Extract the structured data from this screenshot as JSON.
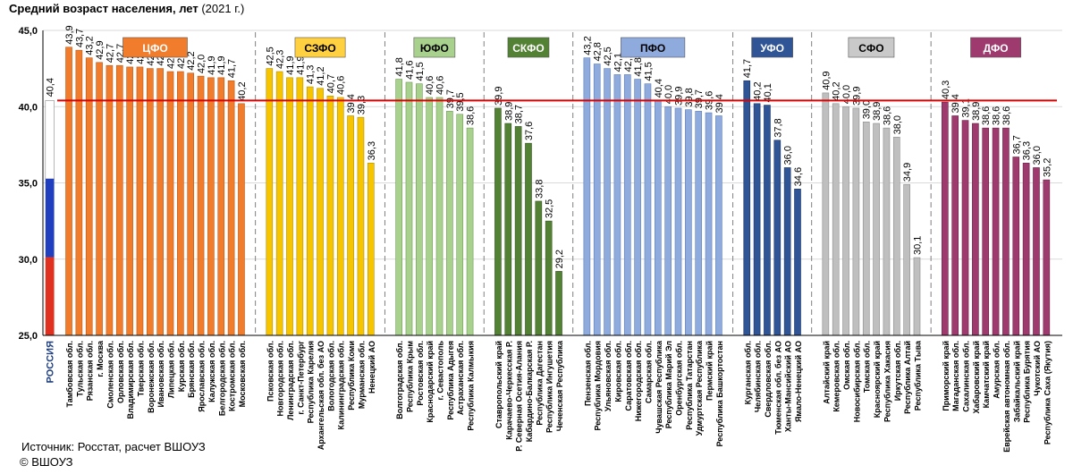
{
  "title": "Средний возраст населения, лет",
  "year_note": "(2021 г.)",
  "source": "Источник: Росстат, расчет ВШОУЗ",
  "copyright": "© ВШОУЗ",
  "colors": {
    "russia_flag": [
      "#ffffff",
      "#1f3fbf",
      "#e03020"
    ],
    "average_line": "#e00000",
    "grid": "#d9d9d9",
    "separator": "#808080"
  },
  "chart_data": {
    "type": "bar",
    "title": "Средний возраст населения, лет (2021 г.)",
    "ylabel": "",
    "ylim": [
      25,
      45
    ],
    "yticks": [
      "25,0",
      "30,0",
      "35,0",
      "40,0",
      "45,0"
    ],
    "yticks_values": [
      25,
      30,
      35,
      40,
      45
    ],
    "reference_line": {
      "value": 40.4
    },
    "russia": {
      "label": "РОССИЯ",
      "value": 40.4,
      "value_label": "40,4"
    },
    "groups": [
      {
        "label": "ЦФО",
        "color": "#f07c2c",
        "edge": "#b85a18",
        "label_color": "#ffffff",
        "badge_fill": "#f07c2c",
        "bars": [
          [
            "Тамбовская обл.",
            43.9
          ],
          [
            "Тульская обл.",
            43.7
          ],
          [
            "Рязанская обл.",
            43.2
          ],
          [
            "г. Москва",
            42.9
          ],
          [
            "Смоленская обл.",
            42.7
          ],
          [
            "Орловская обл.",
            42.7
          ],
          [
            "Владимирская обл.",
            42.6
          ],
          [
            "Тверская обл.",
            42.6
          ],
          [
            "Воронежская обл.",
            42.5
          ],
          [
            "Ивановская обл.",
            42.5
          ],
          [
            "Липецкая обл.",
            42.3
          ],
          [
            "Курская обл.",
            42.3
          ],
          [
            "Брянская обл.",
            42.2
          ],
          [
            "Ярославская обл.",
            42.0
          ],
          [
            "Калужская обл.",
            41.9
          ],
          [
            "Белгородская обл.",
            41.9
          ],
          [
            "Костромская обл.",
            41.7
          ],
          [
            "Московская обл.",
            40.2
          ]
        ]
      },
      {
        "label": "СЗФО",
        "color": "#f6c500",
        "edge": "#b08c00",
        "label_color": "#000000",
        "badge_fill": "#ffd040",
        "bars": [
          [
            "Псковская обл.",
            42.5
          ],
          [
            "Новгородская обл.",
            42.3
          ],
          [
            "Ленинградская обл.",
            41.9
          ],
          [
            "г. Санкт-Петербург",
            41.9
          ],
          [
            "Республика Карелия",
            41.3
          ],
          [
            "Архангельская обл. без АО",
            41.2
          ],
          [
            "Вологодская обл.",
            40.7
          ],
          [
            "Калининградская обл.",
            40.6
          ],
          [
            "Республика Коми",
            39.4
          ],
          [
            "Мурманская обл.",
            39.3
          ],
          [
            "Ненецкий АО",
            36.3
          ]
        ]
      },
      {
        "label": "ЮФО",
        "color": "#a9d18e",
        "edge": "#6e9a55",
        "label_color": "#000000",
        "badge_fill": "#a9d18e",
        "bars": [
          [
            "Волгоградская обл.",
            41.8
          ],
          [
            "Республика Крым",
            41.6
          ],
          [
            "Ростовская обл.",
            41.5
          ],
          [
            "Краснодарский край",
            40.6
          ],
          [
            "г. Севастополь",
            40.6
          ],
          [
            "Республика Адыгея",
            39.7
          ],
          [
            "Астраханская обл.",
            39.5
          ],
          [
            "Республика Калмыкия",
            38.6
          ]
        ]
      },
      {
        "label": "СКФО",
        "color": "#548235",
        "edge": "#365621",
        "label_color": "#ffffff",
        "badge_fill": "#548235",
        "bars": [
          [
            "Ставропольский край",
            39.9
          ],
          [
            "Карачаево-Черкесская Р.",
            38.9
          ],
          [
            "Р. Северная Осетия-Алания",
            38.7
          ],
          [
            "Кабардино-Балкарская Р.",
            37.6
          ],
          [
            "Республика Дагестан",
            33.8
          ],
          [
            "Республика Ингушетия",
            32.5
          ],
          [
            "Чеченская Республика",
            29.2
          ]
        ]
      },
      {
        "label": "ПФО",
        "color": "#8faadc",
        "edge": "#5f7fb8",
        "label_color": "#000000",
        "badge_fill": "#8faadc",
        "bars": [
          [
            "Пензенская обл.",
            43.2
          ],
          [
            "Республика Мордовия",
            42.8
          ],
          [
            "Ульяновская обл.",
            42.5
          ],
          [
            "Кировская обл.",
            42.1
          ],
          [
            "Саратовская обл.",
            42.1
          ],
          [
            "Нижегородская обл.",
            41.8
          ],
          [
            "Самарская обл.",
            41.5
          ],
          [
            "Чувашская Республика",
            40.4
          ],
          [
            "Республика Марий Эл",
            40.0
          ],
          [
            "Оренбургская обл.",
            39.9
          ],
          [
            "Республика Татарстан",
            39.8
          ],
          [
            "Удмуртская Республика",
            39.7
          ],
          [
            "Пермский край",
            39.6
          ],
          [
            "Республика Башкортостан",
            39.4
          ]
        ]
      },
      {
        "label": "УФО",
        "color": "#2f5597",
        "edge": "#1c3566",
        "label_color": "#ffffff",
        "badge_fill": "#2f5597",
        "bars": [
          [
            "Курганская обл.",
            41.7
          ],
          [
            "Челябинская обл.",
            40.2
          ],
          [
            "Свердловская обл.",
            40.1
          ],
          [
            "Тюменская обл. без АО",
            37.8
          ],
          [
            "Ханты-Мансийский АО",
            36.0
          ],
          [
            "Ямало-Ненецкий АО",
            34.6
          ]
        ]
      },
      {
        "label": "СФО",
        "color": "#bfbfbf",
        "edge": "#8c8c8c",
        "label_color": "#000000",
        "badge_fill": "#c9c9c9",
        "bars": [
          [
            "Алтайский край",
            40.9
          ],
          [
            "Кемеровская обл.",
            40.2
          ],
          [
            "Омская обл.",
            40.0
          ],
          [
            "Новосибирская обл.",
            39.9
          ],
          [
            "Томская обл.",
            39.0
          ],
          [
            "Красноярский край",
            38.9
          ],
          [
            "Республика Хакасия",
            38.6
          ],
          [
            "Иркутская обл.",
            38.0
          ],
          [
            "Республика Алтай",
            34.9
          ],
          [
            "Республика Тыва",
            30.1
          ]
        ]
      },
      {
        "label": "ДФО",
        "color": "#9e3a6e",
        "edge": "#6b2249",
        "label_color": "#ffffff",
        "badge_fill": "#9e3a6e",
        "bars": [
          [
            "Приморский край",
            40.3
          ],
          [
            "Магаданская обл.",
            39.4
          ],
          [
            "Сахалинская обл.",
            39.1
          ],
          [
            "Хабаровский край",
            38.9
          ],
          [
            "Камчатский край",
            38.6
          ],
          [
            "Амурская обл.",
            38.6
          ],
          [
            "Еврейская автономная обл.",
            38.6
          ],
          [
            "Забайкальский край",
            36.7
          ],
          [
            "Республика Бурятия",
            36.3
          ],
          [
            "Чукотский АО",
            36.0
          ],
          [
            "Республика Саха (Якутия)",
            35.2
          ]
        ]
      }
    ]
  }
}
